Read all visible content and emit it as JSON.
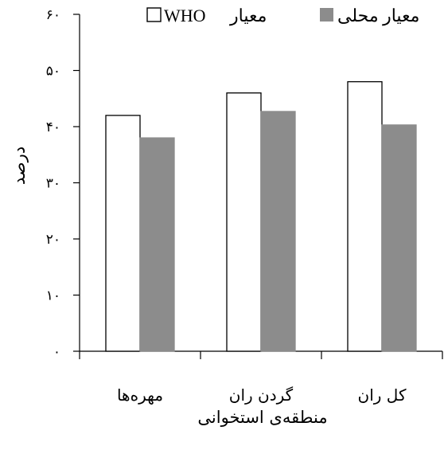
{
  "chart_data": {
    "type": "bar",
    "title": "",
    "xlabel": "منطقه‌ی استخوانی",
    "ylabel": "درصد",
    "ylim": [
      0,
      60
    ],
    "yticks": [
      0,
      10,
      20,
      30,
      40,
      50,
      60
    ],
    "ytick_labels": [
      "۰",
      "۱۰",
      "۲۰",
      "۳۰",
      "۴۰",
      "۵۰",
      "۶۰"
    ],
    "categories": [
      "مهره‌ها",
      "گردن ران",
      "کل ران"
    ],
    "series": [
      {
        "name": "معیار WHO",
        "legend_text": "معیار",
        "legend_suffix": "WHO",
        "values": [
          42,
          46,
          48
        ],
        "fill": "#ffffff",
        "stroke": "#000000"
      },
      {
        "name": "معیار محلی",
        "legend_text": "معیار محلی",
        "values": [
          38,
          42.7,
          40.3
        ],
        "fill": "#8c8c8c",
        "stroke": "#8c8c8c"
      }
    ],
    "grid": false,
    "legend_position": "top"
  }
}
